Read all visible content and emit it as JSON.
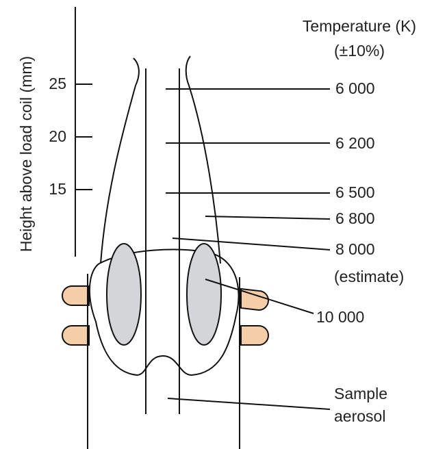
{
  "axis": {
    "label": "Height above load coil (mm)",
    "ticks": [
      "25",
      "20",
      "15"
    ]
  },
  "legend": {
    "title": "Temperature (K)",
    "subtitle": "(±10%)"
  },
  "labels": [
    "6 000",
    "6 200",
    "6 500",
    "6 800",
    "8 000",
    "(estimate)",
    "10 000",
    "Sample",
    "aerosol"
  ]
}
